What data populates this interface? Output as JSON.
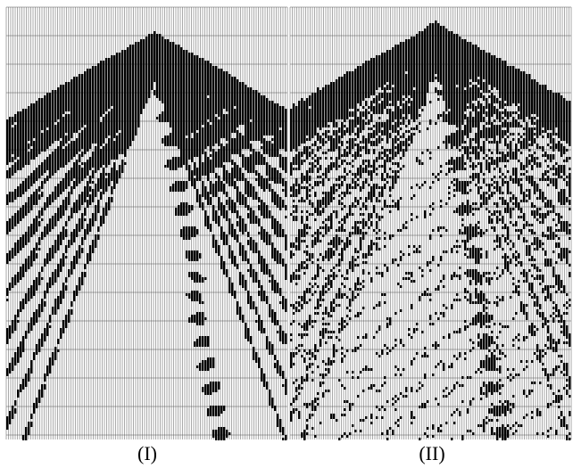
{
  "panels": [
    {
      "label": "(I)"
    },
    {
      "label": "(II)"
    }
  ]
}
